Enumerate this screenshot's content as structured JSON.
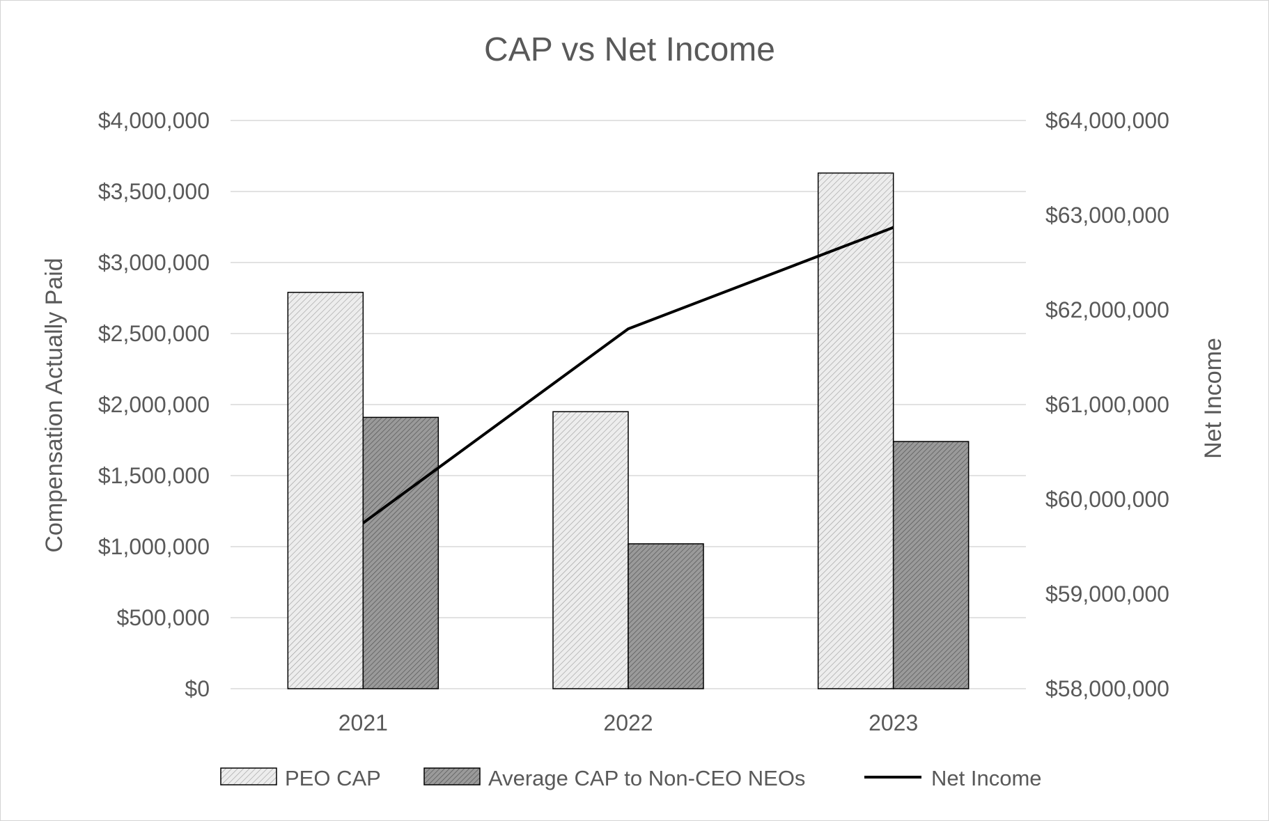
{
  "chart_data": {
    "type": "bar",
    "title": "CAP vs Net Income",
    "categories": [
      "2021",
      "2022",
      "2023"
    ],
    "series": [
      {
        "name": "PEO CAP",
        "kind": "bar",
        "axis": "left",
        "pattern": "light-hatch",
        "values": [
          2790000,
          1950000,
          3630000
        ]
      },
      {
        "name": "Average CAP to Non-CEO NEOs",
        "kind": "bar",
        "axis": "left",
        "pattern": "dark-hatch",
        "values": [
          1910000,
          1020000,
          1740000
        ]
      },
      {
        "name": "Net Income",
        "kind": "line",
        "axis": "right",
        "values": [
          59750000,
          61800000,
          62870000
        ]
      }
    ],
    "ylabel": "Compensation Actually Paid",
    "y2label": "Net Income",
    "ylim": [
      0,
      4000000
    ],
    "y2lim": [
      58000000,
      64000000
    ],
    "yticks": [
      "$0",
      "$500,000",
      "$1,000,000",
      "$1,500,000",
      "$2,000,000",
      "$2,500,000",
      "$3,000,000",
      "$3,500,000",
      "$4,000,000"
    ],
    "y2ticks": [
      "$58,000,000",
      "$59,000,000",
      "$60,000,000",
      "$61,000,000",
      "$62,000,000",
      "$63,000,000",
      "$64,000,000"
    ],
    "grid": true,
    "legend": "bottom",
    "colors": {
      "text": "#595959",
      "grid": "#d9d9d9",
      "bar_light": "#e6e6e6",
      "bar_dark": "#8c8c8c",
      "line": "#000000"
    }
  }
}
